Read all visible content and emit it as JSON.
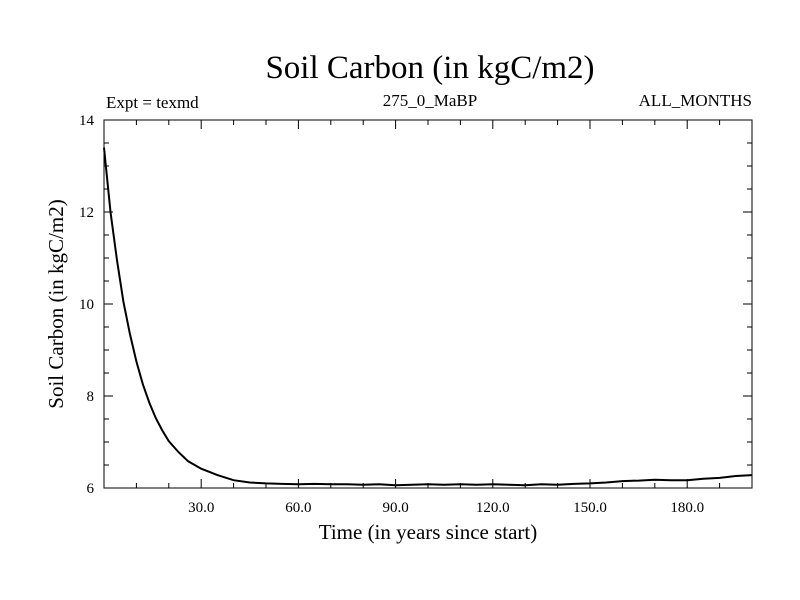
{
  "chart_data": {
    "type": "line",
    "title": "Soil Carbon (in kgC/m2)",
    "subtitle_left": "Expt = texmd",
    "subtitle_center": "275_0_MaBP",
    "subtitle_right": "ALL_MONTHS",
    "xlabel": "Time (in years since start)",
    "ylabel": "Soil Carbon (in kgC/m2)",
    "xlim": [
      0,
      200
    ],
    "ylim": [
      6,
      14
    ],
    "x_ticks": [
      30,
      60,
      90,
      120,
      150,
      180
    ],
    "x_tick_labels": [
      "30.0",
      "60.0",
      "90.0",
      "120.0",
      "150.0",
      "180.0"
    ],
    "y_ticks": [
      6,
      8,
      10,
      12,
      14
    ],
    "y_tick_labels": [
      "6",
      "8",
      "10",
      "12",
      "14"
    ],
    "series": [
      {
        "name": "Soil Carbon",
        "x": [
          0,
          2,
          4,
          6,
          8,
          10,
          12,
          14,
          16,
          18,
          20,
          23,
          26,
          30,
          35,
          40,
          45,
          50,
          55,
          60,
          65,
          70,
          75,
          80,
          85,
          90,
          95,
          100,
          105,
          110,
          115,
          120,
          125,
          130,
          135,
          140,
          145,
          150,
          155,
          160,
          165,
          170,
          175,
          180,
          185,
          190,
          195,
          200
        ],
        "values": [
          13.4,
          12.0,
          10.95,
          10.05,
          9.35,
          8.75,
          8.25,
          7.85,
          7.52,
          7.25,
          7.02,
          6.78,
          6.58,
          6.42,
          6.28,
          6.17,
          6.12,
          6.1,
          6.09,
          6.08,
          6.09,
          6.08,
          6.08,
          6.07,
          6.08,
          6.06,
          6.07,
          6.08,
          6.07,
          6.08,
          6.07,
          6.08,
          6.07,
          6.06,
          6.08,
          6.07,
          6.09,
          6.1,
          6.12,
          6.15,
          6.16,
          6.18,
          6.17,
          6.17,
          6.2,
          6.22,
          6.26,
          6.28
        ]
      }
    ]
  }
}
